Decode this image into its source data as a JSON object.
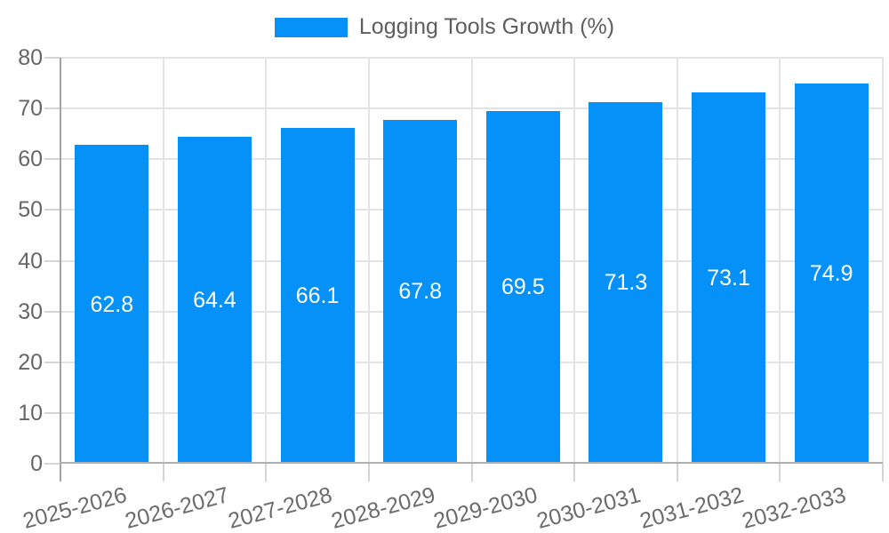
{
  "colors": {
    "bar": "#0591f8",
    "grid": "#e3e3e3",
    "axis_y": "#a3a3a3",
    "axis_x": "#b0b0b0",
    "tick": "#d4d4d4",
    "axis_text": "#666666",
    "value_label": "#ffffff",
    "legend_text": "#5e5e5e"
  },
  "chart_data": {
    "type": "bar",
    "title": "Logging Tools Growth (%)",
    "categories": [
      "2025-2026",
      "2026-2027",
      "2027-2028",
      "2028-2029",
      "2029-2030",
      "2030-2031",
      "2031-2032",
      "2032-2033"
    ],
    "values": [
      62.8,
      64.4,
      66.1,
      67.8,
      69.5,
      71.3,
      73.1,
      74.9
    ],
    "value_labels": [
      "62.8",
      "64.4",
      "66.1",
      "67.8",
      "69.5",
      "71.3",
      "73.1",
      "74.9"
    ],
    "ytick_labels": [
      "0",
      "10",
      "20",
      "30",
      "40",
      "50",
      "60",
      "70",
      "80"
    ],
    "xlabel": "",
    "ylabel": "",
    "ylim": [
      0,
      80
    ],
    "ytick_step": 10,
    "grid": true,
    "legend_position": "top center",
    "value_label_position": "inside-center",
    "xtick_label_rotation_deg": -15
  }
}
